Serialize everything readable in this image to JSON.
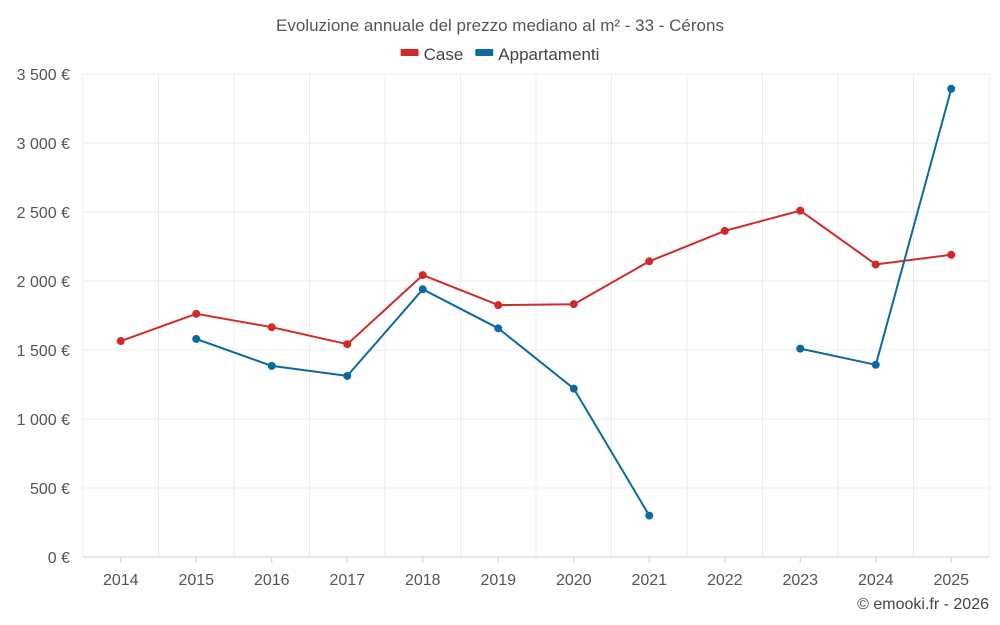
{
  "chart_data": {
    "type": "line",
    "title": "Evoluzione annuale del prezzo mediano al m² - 33 - Cérons",
    "categories": [
      "2014",
      "2015",
      "2016",
      "2017",
      "2018",
      "2019",
      "2020",
      "2021",
      "2022",
      "2023",
      "2024",
      "2025"
    ],
    "series": [
      {
        "name": "Case",
        "color": "#d22a2a",
        "values": [
          1565,
          1762,
          1665,
          1542,
          2043,
          1825,
          1832,
          2143,
          2363,
          2510,
          2120,
          2190
        ]
      },
      {
        "name": "Appartamenti",
        "color": "#0a6aa1",
        "values": [
          null,
          1580,
          1385,
          1312,
          1940,
          1657,
          1220,
          300,
          null,
          1510,
          1393,
          3393
        ]
      }
    ],
    "ylim": [
      0,
      3500
    ],
    "yticks": [
      0,
      500,
      1000,
      1500,
      2000,
      2500,
      3000,
      3500
    ],
    "ytick_labels": [
      "0 €",
      "500 €",
      "1 000 €",
      "1 500 €",
      "2 000 €",
      "2 500 €",
      "3 000 €",
      "3 500 €"
    ],
    "xlabel": "",
    "ylabel": "",
    "grid": true,
    "legend": "top-center"
  },
  "credit": "© emooki.fr - 2026"
}
